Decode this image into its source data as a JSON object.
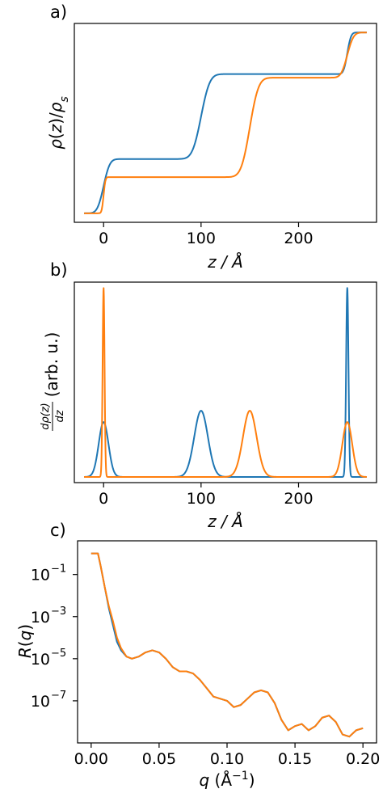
{
  "colors": {
    "blue": "#1f77b4",
    "orange": "#ff7f0e"
  },
  "chart_data": [
    {
      "type": "line",
      "panel_label": "a)",
      "xlabel": "z / Å",
      "ylabel": "ρ(z)/ρ_s",
      "xlim": [
        -30,
        280
      ],
      "ylim": [
        -0.05,
        1.05
      ],
      "xticks": [
        0,
        100,
        200
      ],
      "yticks": [],
      "series": [
        {
          "color": "blue",
          "kind": "steps",
          "steps": [
            {
              "pos": 0,
              "height": 0.3,
              "width": 5
            },
            {
              "pos": 100,
              "height": 0.47,
              "width": 7
            },
            {
              "pos": 250,
              "height": 0.23,
              "width": 3
            }
          ]
        },
        {
          "color": "orange",
          "kind": "steps",
          "steps": [
            {
              "pos": 0,
              "height": 0.2,
              "width": 1.5
            },
            {
              "pos": 150,
              "height": 0.55,
              "width": 7
            },
            {
              "pos": 250,
              "height": 0.25,
              "width": 5
            }
          ]
        }
      ]
    },
    {
      "type": "line",
      "panel_label": "b)",
      "xlabel": "z / Å",
      "ylabel_main": "(arb. u.)",
      "ylabel_num": "dρ(z)",
      "ylabel_den": "dz",
      "xlim": [
        -30,
        280
      ],
      "ylim": [
        -0.03,
        1.03
      ],
      "xticks": [
        0,
        100,
        200
      ],
      "yticks": [],
      "series": [
        {
          "color": "blue",
          "kind": "peaks",
          "peaks": [
            {
              "pos": 0,
              "amp": 0.29,
              "sigma": 5
            },
            {
              "pos": 100,
              "amp": 0.35,
              "sigma": 7
            },
            {
              "pos": 250,
              "amp": 1.0,
              "sigma": 1.2
            }
          ]
        },
        {
          "color": "orange",
          "kind": "peaks",
          "peaks": [
            {
              "pos": 0,
              "amp": 1.0,
              "sigma": 1.0
            },
            {
              "pos": 150,
              "amp": 0.35,
              "sigma": 7
            },
            {
              "pos": 250,
              "amp": 0.29,
              "sigma": 5
            }
          ]
        }
      ]
    },
    {
      "type": "line",
      "panel_label": "c)",
      "xlabel": "q (Å⁻¹)",
      "ylabel": "R(q)",
      "yscale": "log",
      "xlim": [
        -0.01,
        0.21
      ],
      "ylim_log10": [
        -9.0,
        0.6
      ],
      "xticks": [
        0.0,
        0.05,
        0.1,
        0.15,
        0.2
      ],
      "xtick_labels": [
        "0.00",
        "0.05",
        "0.10",
        "0.15",
        "0.20"
      ],
      "yticks_log10": [
        -1,
        -3,
        -5,
        -7
      ],
      "ytick_labels": [
        "10",
        "10",
        "10",
        "10"
      ],
      "ytick_exponents": [
        "−1",
        "−3",
        "−5",
        "−7"
      ],
      "series": [
        {
          "color": "blue",
          "kind": "points",
          "x": [
            0.0,
            0.005,
            0.007,
            0.01,
            0.013,
            0.016,
            0.019,
            0.022,
            0.026,
            0.03,
            0.035,
            0.04,
            0.045,
            0.05,
            0.055,
            0.06,
            0.065,
            0.07,
            0.075,
            0.08,
            0.085,
            0.09,
            0.095,
            0.1,
            0.105,
            0.11,
            0.115,
            0.12,
            0.125,
            0.13,
            0.135,
            0.14,
            0.145,
            0.15,
            0.155,
            0.16,
            0.165,
            0.17,
            0.175,
            0.18,
            0.185,
            0.19,
            0.195,
            0.2
          ],
          "y": [
            0.0,
            0.0,
            -0.6,
            -1.6,
            -2.6,
            -3.4,
            -4.2,
            -4.6,
            -4.9,
            -5.0,
            -4.9,
            -4.7,
            -4.6,
            -4.7,
            -5.0,
            -5.4,
            -5.6,
            -5.6,
            -5.7,
            -6.0,
            -6.4,
            -6.8,
            -6.9,
            -7.0,
            -7.3,
            -7.2,
            -6.9,
            -6.6,
            -6.5,
            -6.6,
            -7.1,
            -7.9,
            -8.4,
            -8.2,
            -8.1,
            -8.4,
            -8.2,
            -7.8,
            -7.7,
            -8.0,
            -8.6,
            -8.7,
            -8.4,
            -8.3
          ]
        },
        {
          "color": "orange",
          "kind": "points",
          "x": [
            0.0,
            0.005,
            0.007,
            0.01,
            0.013,
            0.016,
            0.019,
            0.022,
            0.026,
            0.03,
            0.035,
            0.04,
            0.045,
            0.05,
            0.055,
            0.06,
            0.065,
            0.07,
            0.075,
            0.08,
            0.085,
            0.09,
            0.095,
            0.1,
            0.105,
            0.11,
            0.115,
            0.12,
            0.125,
            0.13,
            0.135,
            0.14,
            0.145,
            0.15,
            0.155,
            0.16,
            0.165,
            0.17,
            0.175,
            0.18,
            0.185,
            0.19,
            0.195,
            0.2
          ],
          "y": [
            0.0,
            0.0,
            -0.6,
            -1.6,
            -2.5,
            -3.2,
            -4.0,
            -4.5,
            -4.9,
            -5.0,
            -4.9,
            -4.7,
            -4.6,
            -4.7,
            -5.0,
            -5.4,
            -5.6,
            -5.6,
            -5.7,
            -6.0,
            -6.4,
            -6.8,
            -6.9,
            -7.0,
            -7.3,
            -7.2,
            -6.9,
            -6.6,
            -6.5,
            -6.6,
            -7.1,
            -7.9,
            -8.4,
            -8.2,
            -8.1,
            -8.4,
            -8.2,
            -7.8,
            -7.7,
            -8.0,
            -8.6,
            -8.7,
            -8.4,
            -8.3
          ]
        }
      ]
    }
  ]
}
